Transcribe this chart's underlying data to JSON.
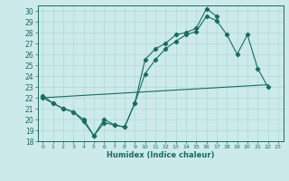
{
  "xlabel": "Humidex (Indice chaleur)",
  "background_color": "#cceaea",
  "grid_color": "#b0d8d8",
  "line_color": "#1a6b60",
  "xlim": [
    -0.5,
    23.5
  ],
  "ylim": [
    18,
    30.5
  ],
  "xticks": [
    0,
    1,
    2,
    3,
    4,
    5,
    6,
    7,
    8,
    9,
    10,
    11,
    12,
    13,
    14,
    15,
    16,
    17,
    18,
    19,
    20,
    21,
    22,
    23
  ],
  "yticks": [
    18,
    19,
    20,
    21,
    22,
    23,
    24,
    25,
    26,
    27,
    28,
    29,
    30
  ],
  "line1_x": [
    0,
    1,
    2,
    3,
    4,
    5,
    6,
    7,
    8,
    9,
    10,
    11,
    12,
    13,
    14,
    15,
    16,
    17
  ],
  "line1_y": [
    22.0,
    21.5,
    21.0,
    20.7,
    20.0,
    18.5,
    20.0,
    19.5,
    19.3,
    21.5,
    25.5,
    26.5,
    27.0,
    27.8,
    28.0,
    28.4,
    30.2,
    29.5
  ],
  "line2_x": [
    0,
    1,
    2,
    3,
    4,
    5,
    6,
    7,
    8,
    9,
    10,
    11,
    12,
    13,
    14,
    15,
    16,
    17,
    18,
    19,
    20,
    21,
    22
  ],
  "line2_y": [
    22.2,
    21.5,
    21.0,
    20.7,
    19.8,
    18.5,
    19.7,
    19.5,
    19.3,
    21.5,
    24.2,
    25.5,
    26.5,
    27.2,
    27.8,
    28.1,
    29.5,
    29.1,
    27.8,
    26.0,
    27.8,
    24.7,
    23.0
  ],
  "line3_x": [
    0,
    22
  ],
  "line3_y": [
    22.0,
    23.2
  ]
}
